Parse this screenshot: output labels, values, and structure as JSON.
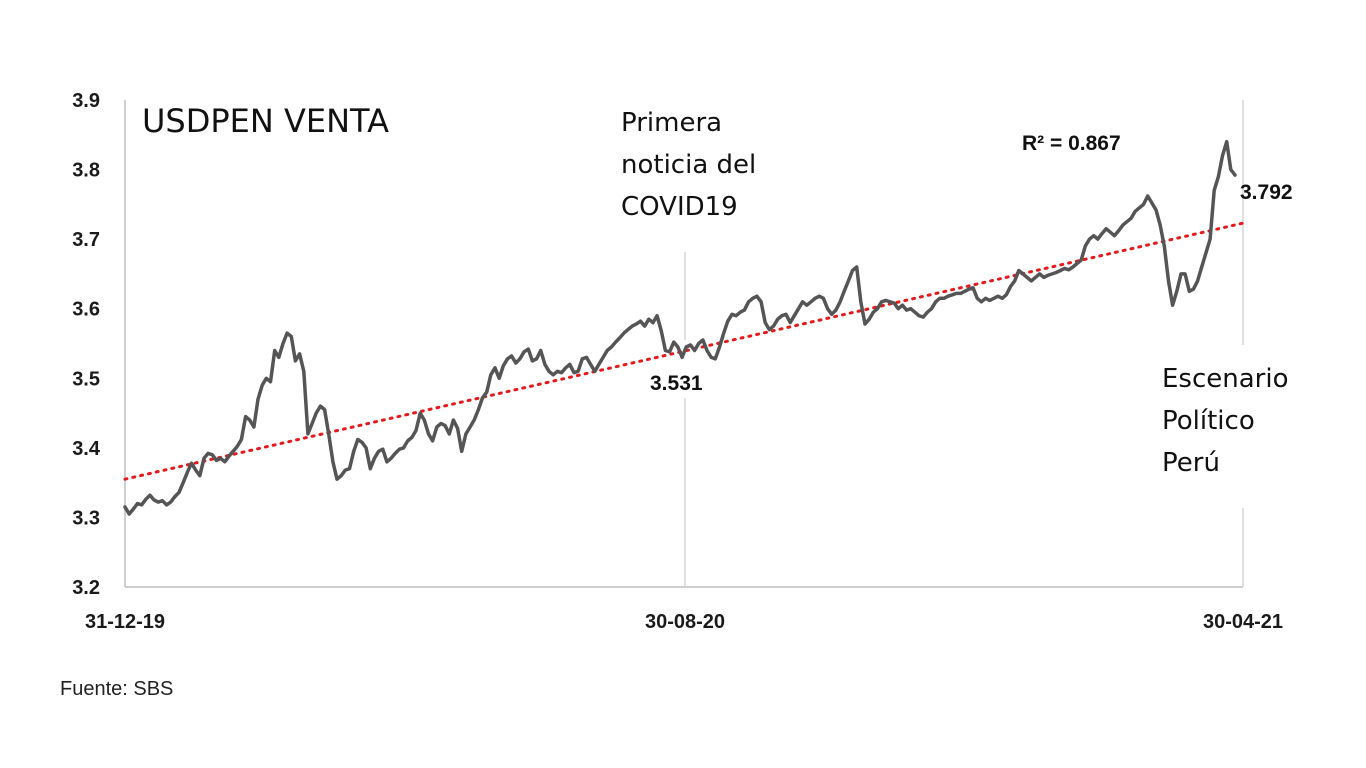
{
  "chart_data": {
    "type": "line",
    "title": "USDPEN VENTA",
    "xlabel": "",
    "ylabel": "",
    "ylim": [
      3.2,
      3.9
    ],
    "yticks": [
      "3.9",
      "3.8",
      "3.7",
      "3.6",
      "3.5",
      "3.4",
      "3.3",
      "3.2"
    ],
    "xticks": [
      "31-12-19",
      "30-08-20",
      "30-04-21"
    ],
    "x_range": [
      "31-12-19",
      "30-04-21"
    ],
    "grid": false,
    "series": [
      {
        "values": [
          3.315,
          3.305,
          3.312,
          3.32,
          3.318,
          3.326,
          3.332,
          3.325,
          3.322,
          3.324,
          3.318,
          3.322,
          3.33,
          3.336,
          3.35,
          3.365,
          3.378,
          3.368,
          3.36,
          3.385,
          3.392,
          3.39,
          3.382,
          3.385,
          3.38,
          3.388,
          3.395,
          3.402,
          3.412,
          3.445,
          3.44,
          3.43,
          3.47,
          3.49,
          3.5,
          3.495,
          3.54,
          3.53,
          3.55,
          3.565,
          3.56,
          3.525,
          3.535,
          3.51,
          3.42,
          3.435,
          3.45,
          3.46,
          3.455,
          3.42,
          3.38,
          3.355,
          3.36,
          3.368,
          3.37,
          3.395,
          3.412,
          3.408,
          3.4,
          3.37,
          3.385,
          3.395,
          3.398,
          3.38,
          3.385,
          3.392,
          3.398,
          3.4,
          3.41,
          3.415,
          3.425,
          3.45,
          3.44,
          3.42,
          3.41,
          3.43,
          3.435,
          3.432,
          3.42,
          3.44,
          3.428,
          3.395,
          3.42,
          3.43,
          3.44,
          3.455,
          3.472,
          3.48,
          3.505,
          3.515,
          3.5,
          3.518,
          3.528,
          3.532,
          3.522,
          3.528,
          3.538,
          3.542,
          3.525,
          3.528,
          3.54,
          3.52,
          3.51,
          3.505,
          3.51,
          3.508,
          3.515,
          3.52,
          3.508,
          3.51,
          3.528,
          3.53,
          3.52,
          3.51,
          3.52,
          3.53,
          3.54,
          3.545,
          3.552,
          3.558,
          3.565,
          3.57,
          3.575,
          3.578,
          3.582,
          3.575,
          3.585,
          3.58,
          3.59,
          3.568,
          3.54,
          3.538,
          3.552,
          3.545,
          3.53,
          3.545,
          3.548,
          3.54,
          3.55,
          3.555,
          3.54,
          3.53,
          3.528,
          3.545,
          3.565,
          3.582,
          3.592,
          3.59,
          3.595,
          3.598,
          3.61,
          3.615,
          3.618,
          3.61,
          3.58,
          3.57,
          3.575,
          3.585,
          3.59,
          3.592,
          3.58,
          3.59,
          3.6,
          3.61,
          3.605,
          3.61,
          3.615,
          3.618,
          3.615,
          3.6,
          3.592,
          3.598,
          3.61,
          3.625,
          3.64,
          3.655,
          3.66,
          3.61,
          3.578,
          3.585,
          3.595,
          3.6,
          3.61,
          3.612,
          3.61,
          3.608,
          3.6,
          3.605,
          3.598,
          3.6,
          3.595,
          3.59,
          3.588,
          3.595,
          3.6,
          3.61,
          3.615,
          3.615,
          3.618,
          3.62,
          3.622,
          3.622,
          3.625,
          3.628,
          3.63,
          3.615,
          3.61,
          3.615,
          3.612,
          3.615,
          3.618,
          3.615,
          3.62,
          3.632,
          3.64,
          3.655,
          3.65,
          3.645,
          3.64,
          3.645,
          3.65,
          3.645,
          3.648,
          3.65,
          3.652,
          3.655,
          3.658,
          3.656,
          3.66,
          3.665,
          3.67,
          3.69,
          3.7,
          3.705,
          3.7,
          3.708,
          3.715,
          3.71,
          3.705,
          3.712,
          3.72,
          3.725,
          3.73,
          3.74,
          3.745,
          3.75,
          3.762,
          3.752,
          3.742,
          3.72,
          3.69,
          3.64,
          3.605,
          3.625,
          3.65,
          3.65,
          3.625,
          3.628,
          3.64,
          3.66,
          3.68,
          3.7,
          3.77,
          3.79,
          3.82,
          3.84,
          3.8,
          3.792
        ]
      }
    ],
    "trendline": {
      "start": 3.355,
      "end": 3.723,
      "color": "#e31a1c",
      "style": "dotted"
    },
    "annotations": {
      "r2": "R² = 0.867",
      "covid_note": [
        "Primera",
        "noticia del",
        "COVID19"
      ],
      "covid_value": "3.531",
      "last_value": "3.792",
      "politics_note": [
        "Escenario",
        "Político",
        "Perú"
      ]
    },
    "colors": {
      "series": "#555555",
      "trend": "#e31a1c",
      "marker_line": "#d6d6d6",
      "axis": "#bfbfbf"
    }
  },
  "source": "Fuente: SBS"
}
